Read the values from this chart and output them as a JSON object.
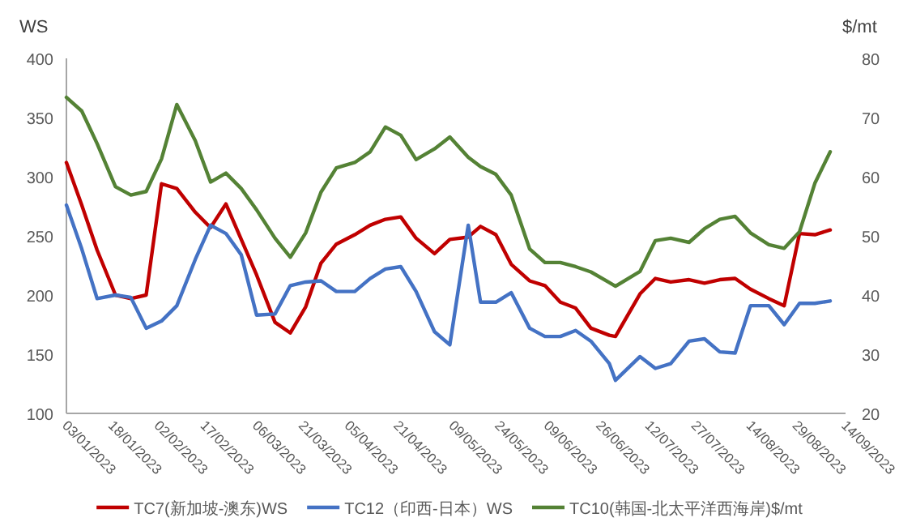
{
  "chart_data": {
    "type": "line",
    "ylabel": "WS",
    "y2label": "$/mt",
    "ylim": [
      100,
      400
    ],
    "yticks": [
      100,
      150,
      200,
      250,
      300,
      350,
      400
    ],
    "y2lim": [
      20,
      80
    ],
    "y2ticks": [
      20,
      30,
      40,
      50,
      60,
      70,
      80
    ],
    "xlim": [
      "2023-01-03",
      "2023-09-14"
    ],
    "xticks": [
      {
        "value": "2023-01-03",
        "label": "03/01/2023"
      },
      {
        "value": "2023-01-18",
        "label": "18/01/2023"
      },
      {
        "value": "2023-02-02",
        "label": "02/02/2023"
      },
      {
        "value": "2023-02-17",
        "label": "17/02/2023"
      },
      {
        "value": "2023-03-06",
        "label": "06/03/2023"
      },
      {
        "value": "2023-03-21",
        "label": "21/03/2023"
      },
      {
        "value": "2023-04-05",
        "label": "05/04/2023"
      },
      {
        "value": "2023-04-21",
        "label": "21/04/2023"
      },
      {
        "value": "2023-05-09",
        "label": "09/05/2023"
      },
      {
        "value": "2023-05-24",
        "label": "24/05/2023"
      },
      {
        "value": "2023-06-09",
        "label": "09/06/2023"
      },
      {
        "value": "2023-06-26",
        "label": "26/06/2023"
      },
      {
        "value": "2023-07-12",
        "label": "12/07/2023"
      },
      {
        "value": "2023-07-27",
        "label": "27/07/2023"
      },
      {
        "value": "2023-08-14",
        "label": "14/08/2023"
      },
      {
        "value": "2023-08-29",
        "label": "29/08/2023"
      },
      {
        "value": "2023-09-14",
        "label": "14/09/2023"
      }
    ],
    "x": [
      "2023-01-03",
      "2023-01-08",
      "2023-01-13",
      "2023-01-19",
      "2023-01-24",
      "2023-01-29",
      "2023-02-03",
      "2023-02-08",
      "2023-02-14",
      "2023-02-19",
      "2023-02-24",
      "2023-03-01",
      "2023-03-06",
      "2023-03-12",
      "2023-03-17",
      "2023-03-22",
      "2023-03-27",
      "2023-04-01",
      "2023-04-07",
      "2023-04-12",
      "2023-04-17",
      "2023-04-22",
      "2023-04-27",
      "2023-05-03",
      "2023-05-08",
      "2023-05-14",
      "2023-05-18",
      "2023-05-23",
      "2023-05-28",
      "2023-06-03",
      "2023-06-08",
      "2023-06-13",
      "2023-06-18",
      "2023-06-23",
      "2023-06-29",
      "2023-07-01",
      "2023-07-09",
      "2023-07-14",
      "2023-07-19",
      "2023-07-25",
      "2023-07-30",
      "2023-08-04",
      "2023-08-09",
      "2023-08-14",
      "2023-08-20",
      "2023-08-25",
      "2023-08-30",
      "2023-09-04",
      "2023-09-09"
    ],
    "legend": "bottom",
    "series": [
      {
        "name": "TC7(新加坡-澳东)WS",
        "color": "#c00000",
        "values": [
          312,
          276,
          238,
          200,
          197,
          200,
          294,
          290,
          270,
          257,
          277,
          247,
          217,
          177,
          168,
          190,
          227,
          243,
          251,
          259,
          264,
          266,
          248,
          235,
          247,
          249,
          258,
          251,
          226,
          212,
          208,
          194,
          189,
          172,
          166,
          165,
          201,
          214,
          211,
          213,
          210,
          213,
          214,
          205,
          197,
          191,
          252,
          251,
          255
        ]
      },
      {
        "name": "TC12（印西-日本）WS",
        "color": "#4472c4",
        "values": [
          276,
          239,
          197,
          200,
          198,
          172,
          178,
          191,
          230,
          259,
          252,
          234,
          183,
          184,
          208,
          211,
          212,
          203,
          203,
          214,
          222,
          224,
          203,
          169,
          158,
          259,
          194,
          194,
          202,
          172,
          165,
          165,
          170,
          161,
          142,
          128,
          148,
          138,
          142,
          161,
          163,
          152,
          151,
          191,
          191,
          175,
          193,
          193,
          195
        ]
      },
      {
        "name": "TC10(韩国-北太平洋西海岸)$/mt",
        "color": "#548235",
        "axis": "y2",
        "values": [
          73.4,
          71.1,
          65.6,
          58.3,
          56.9,
          57.5,
          63,
          72.2,
          66.1,
          59.1,
          60.6,
          58,
          54.4,
          49.6,
          46.4,
          50.5,
          57.4,
          61.5,
          62.4,
          64.2,
          68.4,
          67,
          62.9,
          64.7,
          66.7,
          63.3,
          61.7,
          60.4,
          56.9,
          47.8,
          45.5,
          45.5,
          44.8,
          43.9,
          42.1,
          41.5,
          44,
          49.2,
          49.6,
          48.9,
          51.2,
          52.8,
          53.3,
          50.5,
          48.5,
          47.9,
          50.7,
          58.9,
          64.2
        ]
      }
    ]
  }
}
